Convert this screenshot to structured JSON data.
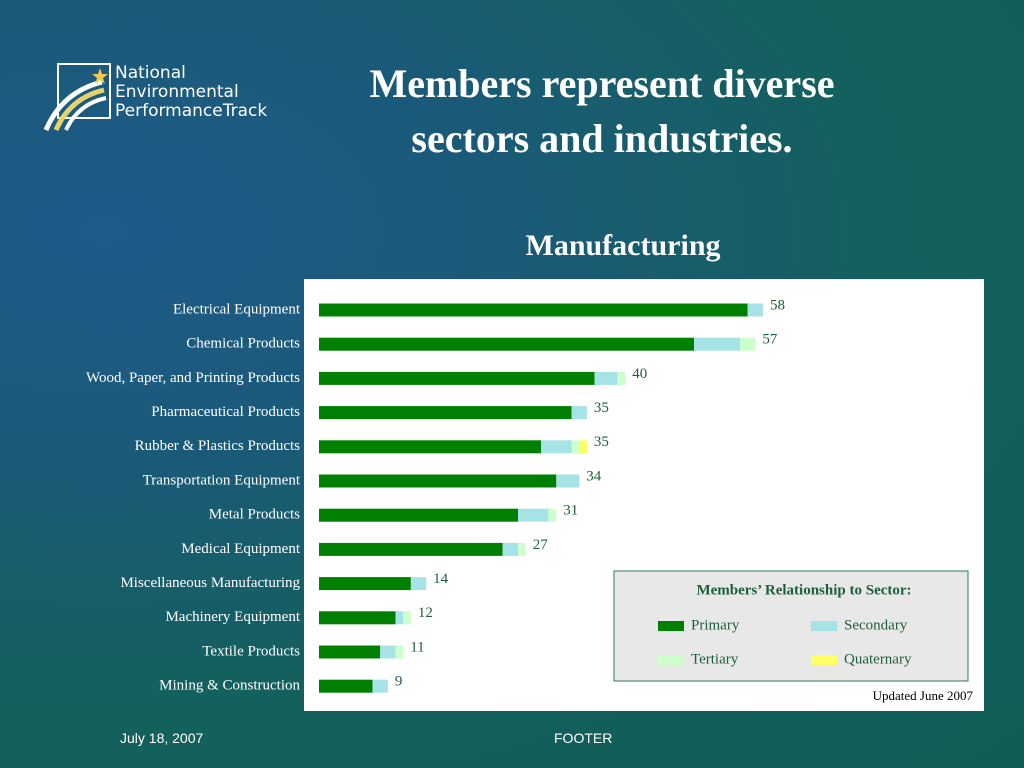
{
  "slide": {
    "logo": [
      "National",
      "Environmental",
      "PerformanceTrack"
    ],
    "title": "Members represent diverse sectors and industries.",
    "footer_date": "July 18, 2007",
    "footer_text": "FOOTER"
  },
  "chart_data": {
    "type": "bar",
    "orientation": "horizontal",
    "stacked": true,
    "title": "Manufacturing",
    "legend_title": "Members’ Relationship to Sector:",
    "note": "Updated June 2007",
    "categories": [
      "Electrical Equipment",
      "Chemical Products",
      "Wood, Paper, and Printing Products",
      "Pharmaceutical Products",
      "Rubber & Plastics Products",
      "Transportation Equipment",
      "Metal Products",
      "Medical Equipment",
      "Miscellaneous Manufacturing",
      "Machinery Equipment",
      "Textile Products",
      "Mining & Construction"
    ],
    "series": [
      {
        "name": "Primary",
        "color": "#008000",
        "values": [
          56,
          49,
          36,
          33,
          29,
          31,
          26,
          24,
          12,
          10,
          8,
          7
        ]
      },
      {
        "name": "Secondary",
        "color": "#a6e3e6",
        "values": [
          2,
          6,
          3,
          2,
          4,
          3,
          4,
          2,
          2,
          1,
          2,
          2
        ]
      },
      {
        "name": "Tertiary",
        "color": "#ccffcc",
        "values": [
          0,
          2,
          1,
          0,
          1,
          0,
          1,
          1,
          0,
          1,
          1,
          0
        ]
      },
      {
        "name": "Quaternary",
        "color": "#ffff66",
        "values": [
          0,
          0,
          0,
          0,
          1,
          0,
          0,
          0,
          0,
          0,
          0,
          0
        ]
      }
    ],
    "totals": [
      58,
      57,
      40,
      35,
      35,
      34,
      31,
      27,
      14,
      12,
      11,
      9
    ],
    "xlim": [
      0,
      58
    ]
  }
}
